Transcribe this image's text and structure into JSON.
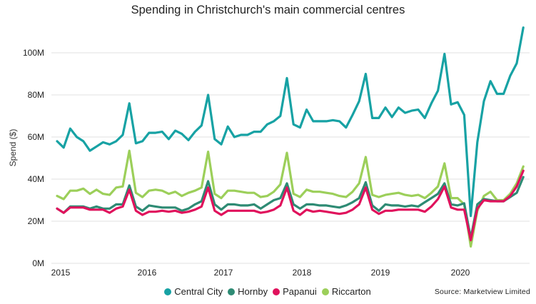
{
  "chart_data": {
    "type": "line",
    "title": "Spending in Christchurch's main commercial centres",
    "xlabel": "",
    "ylabel": "Spend ($)",
    "ylim": [
      0,
      112
    ],
    "y_unit": "M",
    "yticks": [
      "0M",
      "20M",
      "40M",
      "60M",
      "80M",
      "100M"
    ],
    "ytick_values": [
      0,
      20,
      40,
      60,
      80,
      100
    ],
    "xticks": [
      "2015",
      "2016",
      "2017",
      "2018",
      "2019",
      "2020"
    ],
    "x_start": "Jan 2015",
    "x_end": "Dec 2020",
    "x_frequency": "monthly",
    "grid": true,
    "legend_position": "bottom",
    "source": "Source: Marketview Limited",
    "series": [
      {
        "name": "Central City",
        "color": "#17a2a4",
        "values": [
          58,
          55,
          64,
          60,
          58,
          53.5,
          55.5,
          57.5,
          56.5,
          58,
          61,
          76,
          57,
          58,
          62,
          62,
          62.5,
          59,
          63,
          61.5,
          58.5,
          62.5,
          65.5,
          80,
          59,
          56.5,
          65,
          60,
          61,
          61,
          62.5,
          62.5,
          66,
          67.5,
          70,
          88,
          66,
          64.5,
          73,
          67.5,
          67.5,
          67.5,
          68,
          67.5,
          64.5,
          70.5,
          77,
          90,
          69,
          69,
          74,
          69.5,
          74,
          71.5,
          72.5,
          73,
          69,
          76,
          82,
          99.5,
          75.5,
          76.5,
          70.5,
          22.5,
          57.5,
          77,
          86.5,
          80.5,
          80.5,
          89,
          95,
          112
        ]
      },
      {
        "name": "Hornby",
        "color": "#2e8b74",
        "values": [
          26,
          24,
          27,
          27,
          27,
          26,
          27,
          26,
          26,
          28,
          28,
          37,
          27,
          25,
          27.5,
          27,
          26.5,
          26.5,
          26.5,
          25,
          26,
          28,
          29.5,
          39,
          28,
          25.5,
          28,
          28,
          27.5,
          27.5,
          28,
          26,
          28,
          30,
          31,
          38,
          28,
          26,
          28,
          28,
          27.5,
          27.5,
          27,
          26.5,
          27.5,
          29,
          31,
          38.5,
          27.5,
          25,
          28,
          27.5,
          27.5,
          27,
          27.5,
          27,
          29,
          31,
          33,
          38,
          28,
          27.5,
          28.5,
          12,
          28,
          30.5,
          30,
          29.5,
          29.5,
          31.5,
          33.5,
          41
        ]
      },
      {
        "name": "Papanui",
        "color": "#e0125c",
        "values": [
          26,
          24,
          26.5,
          26.5,
          26.5,
          25.5,
          25.5,
          25.5,
          24,
          26,
          27,
          35,
          25,
          23,
          24.5,
          24.5,
          25,
          24.5,
          25,
          24,
          24.5,
          25.5,
          27,
          36,
          25,
          23,
          25,
          25,
          25,
          25,
          25,
          24,
          24.5,
          25.5,
          27.5,
          36,
          25,
          23,
          25.5,
          24.5,
          25,
          24.5,
          24,
          23.5,
          24,
          25.5,
          28,
          36,
          25.5,
          23.5,
          25,
          25,
          25.5,
          25.5,
          25.5,
          25.5,
          24.5,
          27,
          30.5,
          36.5,
          26.5,
          25.5,
          25.5,
          11,
          26,
          30,
          29.5,
          29.5,
          29.5,
          32,
          36.5,
          44
        ]
      },
      {
        "name": "Riccarton",
        "color": "#9ccf5a",
        "values": [
          32,
          30.5,
          34.5,
          34.5,
          35.5,
          33,
          35,
          33,
          32.5,
          36,
          36.5,
          53.5,
          33.5,
          31.5,
          34.5,
          35,
          34.5,
          33,
          34,
          32,
          33.5,
          34.5,
          36,
          53,
          33,
          31,
          34.5,
          34.5,
          34,
          33.5,
          33.5,
          31.5,
          32,
          34,
          37.5,
          52.5,
          33,
          31.5,
          35,
          34,
          34,
          33.5,
          33,
          32,
          31.5,
          34,
          38,
          50.5,
          32.5,
          31.5,
          32.5,
          33,
          33.5,
          32.5,
          32,
          32.5,
          31,
          33.5,
          36.5,
          47.5,
          31,
          31,
          28,
          8,
          25,
          32,
          34,
          30,
          30,
          33,
          38,
          46
        ]
      }
    ]
  }
}
